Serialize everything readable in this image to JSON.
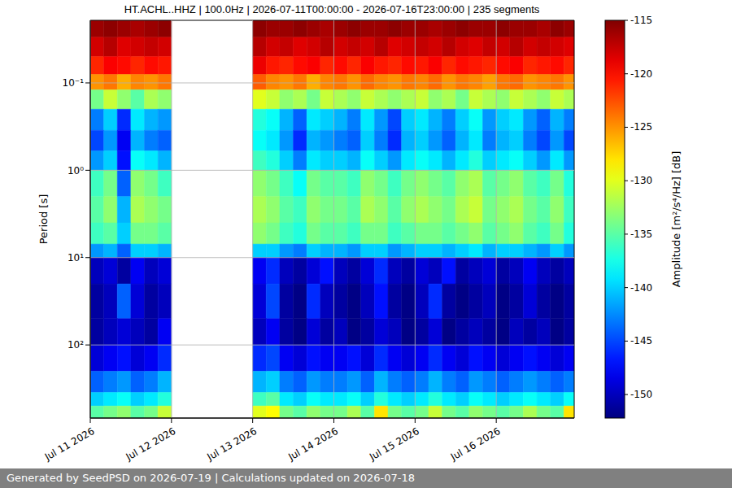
{
  "chart_data": {
    "type": "heatmap",
    "title": "HT.ACHL..HHZ | 100.0Hz | 2026-07-11T00:00:00 - 2026-07-16T23:00:00 | 235 segments",
    "footer": "Generated by SeedPSD on 2026-07-19 | Calculations updated on 2026-07-18",
    "ylabel": "Period [s]",
    "colorbar_label": "Amplitude [m²/s⁴/Hz] [dB]",
    "log": "y",
    "grid": true,
    "xlim": [
      11,
      16.96
    ],
    "xticks": [
      {
        "value": 11,
        "label": "Jul 11 2026"
      },
      {
        "value": 12,
        "label": "Jul 12 2026"
      },
      {
        "value": 13,
        "label": "Jul 13 2026"
      },
      {
        "value": 14,
        "label": "Jul 14 2026"
      },
      {
        "value": 15,
        "label": "Jul 15 2026"
      },
      {
        "value": 16,
        "label": "Jul 16 2026"
      }
    ],
    "ylim": [
      0.0192,
      687
    ],
    "yticks": [
      {
        "value": 0.1,
        "label": "10⁻¹"
      },
      {
        "value": 1,
        "label": "10⁰"
      },
      {
        "value": 10,
        "label": "10¹"
      },
      {
        "value": 100,
        "label": "10²"
      }
    ],
    "zlim": [
      -152.2,
      -115
    ],
    "zticks": [
      -150,
      -145,
      -140,
      -135,
      -130,
      -125,
      -120,
      -115
    ],
    "x_edges": [
      11,
      11.1667,
      11.3333,
      11.5,
      11.6667,
      11.8333,
      12,
      12.1667,
      12.3333,
      12.5,
      12.6667,
      12.8333,
      13,
      13.1667,
      13.3333,
      13.5,
      13.6667,
      13.8333,
      14,
      14.1667,
      14.3333,
      14.5,
      14.6667,
      14.8333,
      15,
      15.1667,
      15.3333,
      15.5,
      15.6667,
      15.8333,
      16,
      16.1667,
      16.3333,
      16.5,
      16.6667,
      16.8333,
      16.96
    ],
    "y_edges": [
      0.0192,
      0.03,
      0.05,
      0.08,
      0.12,
      0.2,
      0.35,
      0.6,
      1,
      2,
      4,
      7,
      10,
      20,
      50,
      100,
      200,
      350,
      500,
      687
    ],
    "z": [
      [
        -116,
        -115.5,
        -116,
        -116.5,
        -116,
        -115.5,
        null,
        null,
        null,
        null,
        null,
        null,
        -115.5,
        -116,
        -116,
        -115.5,
        -116,
        -116.5,
        -116,
        -115.5,
        -116,
        -116,
        -115.5,
        -116,
        -116,
        -116.5,
        -116,
        -115.5,
        -116,
        -116,
        -115.5,
        -116,
        -116,
        -116.5,
        -115.5,
        -116
      ],
      [
        -118,
        -117,
        -118.5,
        -118,
        -117.5,
        -118,
        null,
        null,
        null,
        null,
        null,
        null,
        -117,
        -118,
        -117.5,
        -118.5,
        -118,
        -117,
        -118,
        -117.5,
        -118,
        -117,
        -118.5,
        -118,
        -117.5,
        -118,
        -117,
        -118,
        -118.5,
        -117.5,
        -118,
        -117,
        -118,
        -117.5,
        -118,
        -118.5
      ],
      [
        -121,
        -119.5,
        -120,
        -121,
        -120,
        -120.5,
        null,
        null,
        null,
        null,
        null,
        null,
        -119,
        -120.5,
        -121,
        -120,
        -119.5,
        -121,
        -120,
        -121,
        -119.5,
        -120.5,
        -121,
        -120,
        -120.5,
        -119.5,
        -121,
        -120,
        -120.5,
        -121,
        -120,
        -119.5,
        -121,
        -120.5,
        -120,
        -121
      ],
      [
        -125,
        -124,
        -126,
        -124.5,
        -125,
        -124,
        null,
        null,
        null,
        null,
        null,
        null,
        -123,
        -124.5,
        -125,
        -124,
        -126,
        -124.5,
        -124,
        -125,
        -123.5,
        -124.5,
        -125,
        -124,
        -124.5,
        -123.5,
        -125,
        -124,
        -124.5,
        -125.5,
        -124,
        -123.5,
        -125,
        -124.5,
        -124,
        -125
      ],
      [
        -134,
        -131,
        -133,
        -135,
        -132,
        -133,
        null,
        null,
        null,
        null,
        null,
        null,
        -130,
        -131,
        -133,
        -132,
        -134,
        -131,
        -132,
        -133,
        -131,
        -132,
        -133,
        -132,
        -131,
        -133,
        -132,
        -134,
        -131,
        -132,
        -133,
        -131,
        -132,
        -133,
        -131,
        -132
      ],
      [
        -143,
        -140,
        -146,
        -139,
        -141,
        -142,
        null,
        null,
        null,
        null,
        null,
        null,
        -137,
        -138,
        -141,
        -144,
        -139,
        -140,
        -141,
        -143,
        -139,
        -142,
        -145,
        -140,
        -139,
        -141,
        -143,
        -140,
        -138,
        -142,
        -140,
        -139,
        -142,
        -144,
        -141,
        -143
      ],
      [
        -145,
        -142,
        -148,
        -141,
        -143,
        -144,
        null,
        null,
        null,
        null,
        null,
        null,
        -138,
        -139,
        -142,
        -146,
        -141,
        -142,
        -143,
        -144,
        -140,
        -143,
        -146,
        -141,
        -140,
        -142,
        -144,
        -141,
        -139,
        -143,
        -141,
        -140,
        -143,
        -145,
        -142,
        -145
      ],
      [
        -142,
        -140,
        -147,
        -138,
        -139,
        -141,
        null,
        null,
        null,
        null,
        null,
        null,
        -136,
        -137,
        -140,
        -143,
        -139,
        -140,
        -140,
        -141,
        -138,
        -140,
        -142,
        -139,
        -138,
        -139,
        -141,
        -139,
        -137,
        -140,
        -139,
        -138,
        -140,
        -142,
        -139,
        -142
      ],
      [
        -136,
        -134,
        -144,
        -133,
        -134,
        -136,
        null,
        null,
        null,
        null,
        null,
        null,
        -133,
        -134,
        -136,
        -138,
        -134,
        -135,
        -135,
        -136,
        -133,
        -134,
        -136,
        -134,
        -133,
        -134,
        -135,
        -133,
        -132,
        -135,
        -134,
        -133,
        -135,
        -136,
        -134,
        -137
      ],
      [
        -135,
        -133,
        -141,
        -132,
        -133,
        -134,
        null,
        null,
        null,
        null,
        null,
        null,
        -132,
        -133,
        -135,
        -136,
        -133,
        -134,
        -134,
        -135,
        -132,
        -133,
        -135,
        -133,
        -132,
        -133,
        -134,
        -132,
        -131,
        -134,
        -133,
        -132,
        -134,
        -135,
        -133,
        -136
      ],
      [
        -136,
        -135,
        -140,
        -134,
        -134,
        -135,
        null,
        null,
        null,
        null,
        null,
        null,
        -133,
        -134,
        -136,
        -137,
        -134,
        -135,
        -135,
        -136,
        -134,
        -134,
        -136,
        -135,
        -134,
        -134,
        -135,
        -134,
        -133,
        -135,
        -134,
        -133,
        -135,
        -136,
        -134,
        -137
      ],
      [
        -142,
        -141,
        -144,
        -140,
        -140,
        -141,
        null,
        null,
        null,
        null,
        null,
        null,
        -140,
        -140,
        -142,
        -143,
        -140,
        -141,
        -141,
        -142,
        -140,
        -140,
        -142,
        -141,
        -140,
        -140,
        -141,
        -140,
        -139,
        -141,
        -140,
        -140,
        -141,
        -142,
        -140,
        -142
      ],
      [
        -150,
        -149,
        -151,
        -148,
        -150,
        -149,
        null,
        null,
        null,
        null,
        null,
        null,
        -148,
        -146,
        -150,
        -151,
        -149,
        -147,
        -150,
        -151,
        -149,
        -146,
        -150,
        -151,
        -149,
        -150,
        -147,
        -151,
        -150,
        -149,
        -151,
        -150,
        -148,
        -150,
        -151,
        -150
      ],
      [
        -151,
        -150,
        -144,
        -149,
        -151,
        -150,
        null,
        null,
        null,
        null,
        null,
        null,
        -149,
        -145,
        -151,
        -152,
        -146,
        -150,
        -151,
        -152,
        -150,
        -147,
        -151,
        -152,
        -150,
        -146,
        -151,
        -152,
        -151,
        -150,
        -152,
        -151,
        -149,
        -151,
        -152,
        -151
      ],
      [
        -151,
        -150,
        -149,
        -150,
        -151,
        -148,
        null,
        null,
        null,
        null,
        null,
        null,
        -150,
        -148,
        -151,
        -152,
        -149,
        -151,
        -150,
        -152,
        -151,
        -149,
        -150,
        -152,
        -151,
        -149,
        -152,
        -151,
        -150,
        -151,
        -152,
        -150,
        -151,
        -150,
        -152,
        -151
      ],
      [
        -149,
        -148,
        -147,
        -149,
        -148,
        -146,
        null,
        null,
        null,
        null,
        null,
        null,
        -146,
        -145,
        -148,
        -149,
        -147,
        -148,
        -148,
        -147,
        -149,
        -146,
        -148,
        -149,
        -148,
        -146,
        -148,
        -149,
        -147,
        -148,
        -149,
        -148,
        -147,
        -148,
        -149,
        -148
      ],
      [
        -144,
        -143,
        -142,
        -144,
        -143,
        -141,
        null,
        null,
        null,
        null,
        null,
        null,
        -141,
        -140,
        -143,
        -144,
        -142,
        -143,
        -143,
        -142,
        -144,
        -141,
        -143,
        -144,
        -143,
        -141,
        -143,
        -144,
        -142,
        -143,
        -144,
        -143,
        -142,
        -143,
        -144,
        -143
      ],
      [
        -140,
        -139,
        -138,
        -140,
        -139,
        -137,
        null,
        null,
        null,
        null,
        null,
        null,
        -136,
        -135,
        -139,
        -140,
        -138,
        -139,
        -139,
        -138,
        -140,
        -137,
        -139,
        -140,
        -139,
        -137,
        -139,
        -140,
        -138,
        -139,
        -140,
        -139,
        -138,
        -139,
        -140,
        -138
      ],
      [
        -135,
        -134,
        -133,
        -135,
        -134,
        -131,
        null,
        null,
        null,
        null,
        null,
        null,
        -130,
        -129,
        -134,
        -135,
        -133,
        -134,
        -134,
        -132,
        -135,
        -128,
        -134,
        -135,
        -134,
        -131,
        -134,
        -135,
        -133,
        -134,
        -135,
        -134,
        -132,
        -134,
        -135,
        -128
      ]
    ]
  }
}
